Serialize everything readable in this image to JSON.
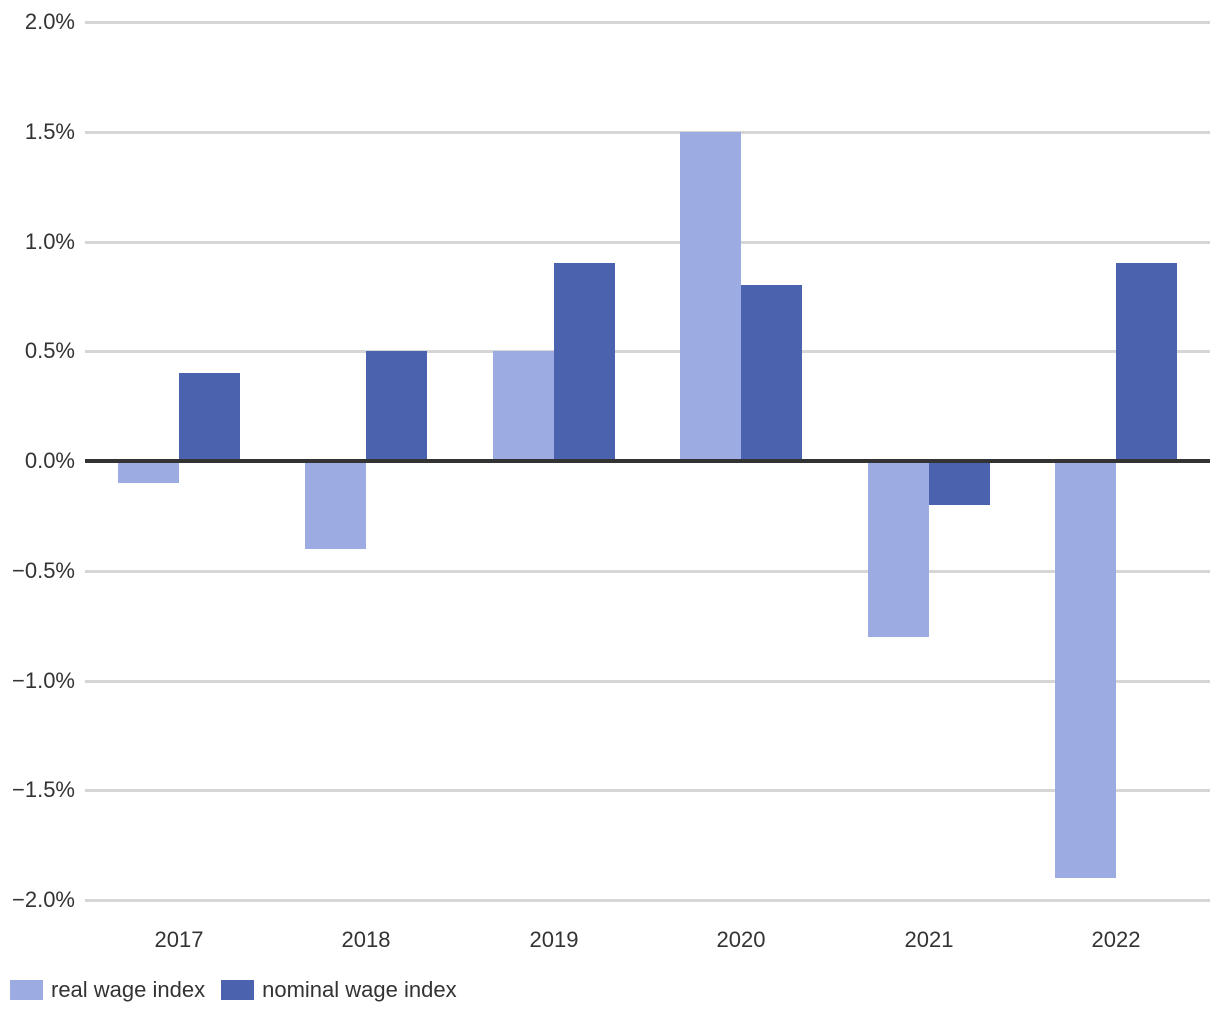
{
  "chart_data": {
    "type": "bar",
    "categories": [
      "2017",
      "2018",
      "2019",
      "2020",
      "2021",
      "2022"
    ],
    "series": [
      {
        "name": "real wage index",
        "color": "#9dabe3",
        "values": [
          -0.1,
          -0.4,
          0.5,
          1.5,
          -0.8,
          -1.9
        ]
      },
      {
        "name": "nominal wage index",
        "color": "#4b63af",
        "values": [
          0.4,
          0.5,
          0.9,
          0.8,
          -0.2,
          0.9
        ]
      }
    ],
    "y_axis": {
      "min": -2.0,
      "max": 2.0,
      "ticks": [
        2.0,
        1.5,
        1.0,
        0.5,
        0.0,
        -0.5,
        -1.0,
        -1.5,
        -2.0
      ],
      "tick_labels": [
        "2.0%",
        "1.5%",
        "1.0%",
        "0.5%",
        "0.0%",
        "−0.5%",
        "−1.0%",
        "−1.5%",
        "−2.0%"
      ],
      "unit": "percent"
    },
    "grid": true,
    "legend_position": "bottom-left",
    "colors": {
      "gridline": "#d6d6d6",
      "zero_line": "#333333",
      "text": "#333333",
      "background": "#ffffff"
    }
  }
}
